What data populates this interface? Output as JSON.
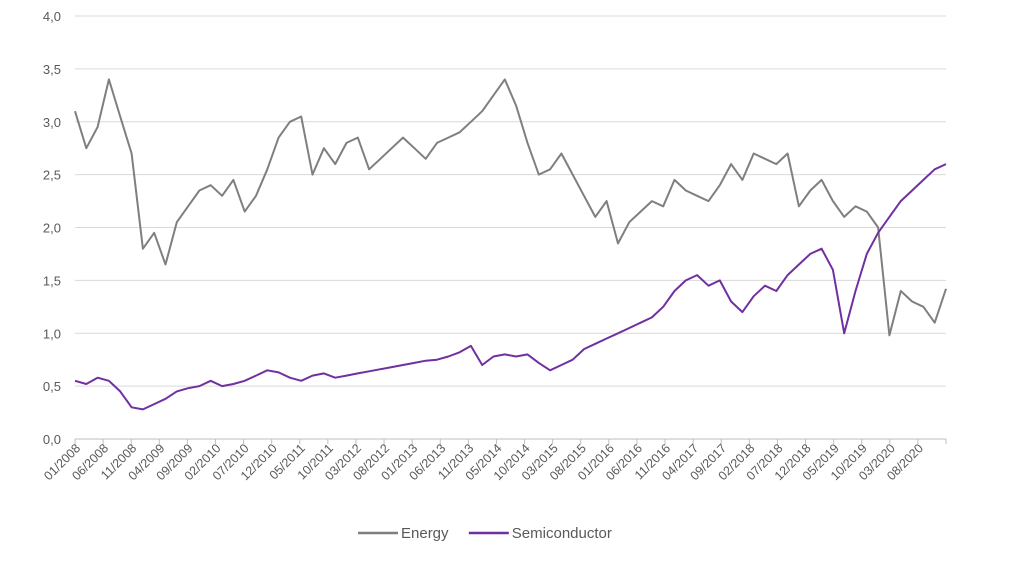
{
  "chart_data": {
    "type": "line",
    "title": "",
    "xlabel": "",
    "ylabel": "",
    "ylim": [
      0,
      4
    ],
    "yticks": [
      "0,0",
      "0,5",
      "1,0",
      "1,5",
      "2,0",
      "2,5",
      "3,0",
      "3,5",
      "4,0"
    ],
    "xticks": [
      "01/2008",
      "06/2008",
      "11/2008",
      "04/2009",
      "09/2009",
      "02/2010",
      "07/2010",
      "12/2010",
      "05/2011",
      "10/2011",
      "03/2012",
      "08/2012",
      "01/2013",
      "06/2013",
      "11/2013",
      "05/2014",
      "10/2014",
      "03/2015",
      "08/2015",
      "01/2016",
      "06/2016",
      "11/2016",
      "04/2017",
      "09/2017",
      "02/2018",
      "07/2018",
      "12/2018",
      "05/2019",
      "10/2019",
      "03/2020",
      "08/2020"
    ],
    "grid": true,
    "legend": "bottom-center",
    "x": [
      "01/2008",
      "03/2008",
      "05/2008",
      "07/2008",
      "09/2008",
      "11/2008",
      "01/2009",
      "03/2009",
      "05/2009",
      "07/2009",
      "09/2009",
      "11/2009",
      "01/2010",
      "03/2010",
      "05/2010",
      "07/2010",
      "09/2010",
      "11/2010",
      "01/2011",
      "03/2011",
      "05/2011",
      "07/2011",
      "09/2011",
      "11/2011",
      "01/2012",
      "03/2012",
      "05/2012",
      "07/2012",
      "09/2012",
      "11/2012",
      "01/2013",
      "03/2013",
      "05/2013",
      "07/2013",
      "09/2013",
      "11/2013",
      "01/2014",
      "03/2014",
      "05/2014",
      "07/2014",
      "09/2014",
      "11/2014",
      "01/2015",
      "03/2015",
      "05/2015",
      "07/2015",
      "09/2015",
      "11/2015",
      "01/2016",
      "03/2016",
      "05/2016",
      "07/2016",
      "09/2016",
      "11/2016",
      "01/2017",
      "03/2017",
      "05/2017",
      "07/2017",
      "09/2017",
      "11/2017",
      "01/2018",
      "03/2018",
      "05/2018",
      "07/2018",
      "09/2018",
      "11/2018",
      "01/2019",
      "03/2019",
      "05/2019",
      "07/2019",
      "09/2019",
      "11/2019",
      "01/2020",
      "03/2020",
      "05/2020",
      "07/2020",
      "09/2020",
      "11/2020"
    ],
    "series": [
      {
        "name": "Energy",
        "color": "#7f7f7f",
        "values": [
          3.1,
          2.75,
          2.95,
          3.4,
          3.05,
          2.7,
          1.8,
          1.95,
          1.65,
          2.05,
          2.2,
          2.35,
          2.4,
          2.3,
          2.45,
          2.15,
          2.3,
          2.55,
          2.85,
          3.0,
          3.05,
          2.5,
          2.75,
          2.6,
          2.8,
          2.85,
          2.55,
          2.65,
          2.75,
          2.85,
          2.75,
          2.65,
          2.8,
          2.85,
          2.9,
          3.0,
          3.1,
          3.25,
          3.4,
          3.15,
          2.8,
          2.5,
          2.55,
          2.7,
          2.5,
          2.3,
          2.1,
          2.25,
          1.85,
          2.05,
          2.15,
          2.25,
          2.2,
          2.45,
          2.35,
          2.3,
          2.25,
          2.4,
          2.6,
          2.45,
          2.7,
          2.65,
          2.6,
          2.7,
          2.2,
          2.35,
          2.45,
          2.25,
          2.1,
          2.2,
          2.15,
          2.0,
          0.98,
          1.4,
          1.3,
          1.25,
          1.1,
          1.42
        ]
      },
      {
        "name": "Semiconductor",
        "color": "#7030a0",
        "values": [
          0.55,
          0.52,
          0.58,
          0.55,
          0.45,
          0.3,
          0.28,
          0.33,
          0.38,
          0.45,
          0.48,
          0.5,
          0.55,
          0.5,
          0.52,
          0.55,
          0.6,
          0.65,
          0.63,
          0.58,
          0.55,
          0.6,
          0.62,
          0.58,
          0.6,
          0.62,
          0.64,
          0.66,
          0.68,
          0.7,
          0.72,
          0.74,
          0.75,
          0.78,
          0.82,
          0.88,
          0.7,
          0.78,
          0.8,
          0.78,
          0.8,
          0.72,
          0.65,
          0.7,
          0.75,
          0.85,
          0.9,
          0.95,
          1.0,
          1.05,
          1.1,
          1.15,
          1.25,
          1.4,
          1.5,
          1.55,
          1.45,
          1.5,
          1.3,
          1.2,
          1.35,
          1.45,
          1.4,
          1.55,
          1.65,
          1.75,
          1.8,
          1.6,
          1.0,
          1.4,
          1.75,
          1.95,
          2.1,
          2.25,
          2.35,
          2.45,
          2.55,
          2.6
        ]
      }
    ]
  }
}
